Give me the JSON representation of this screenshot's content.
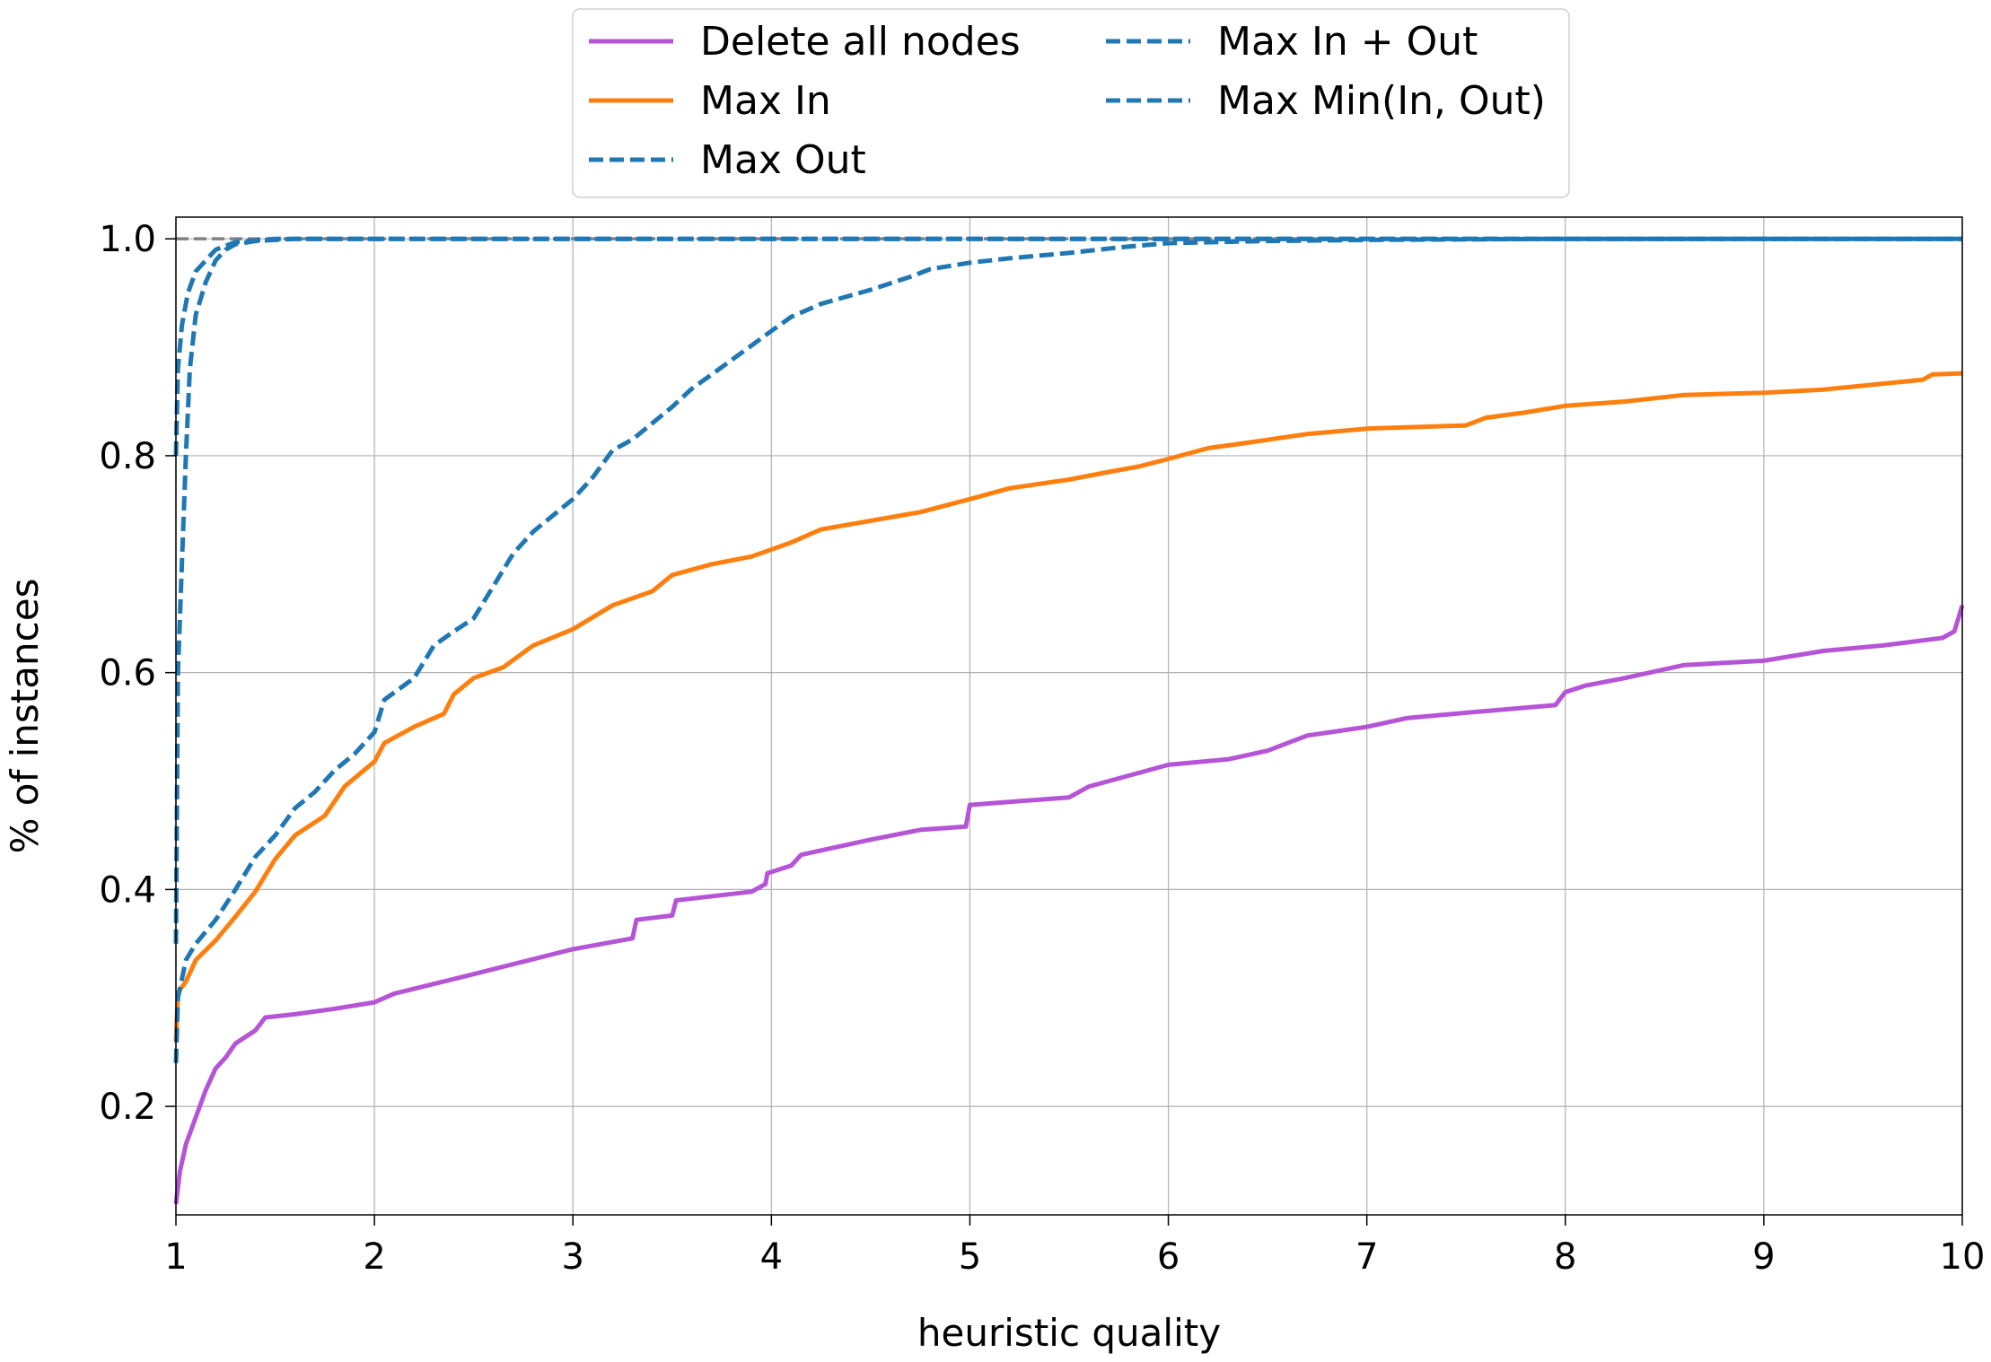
{
  "chart_data": {
    "type": "line",
    "title": "",
    "xlabel": "heuristic quality",
    "ylabel": "% of instances",
    "xlim": [
      1,
      10
    ],
    "ylim": [
      0.1,
      1.02
    ],
    "xticks": [
      1,
      2,
      3,
      4,
      5,
      6,
      7,
      8,
      9,
      10
    ],
    "yticks": [
      0.2,
      0.4,
      0.6,
      0.8,
      1.0
    ],
    "ytick_labels": [
      "0.2",
      "0.4",
      "0.6",
      "0.8",
      "1.0"
    ],
    "grid": true,
    "legend_position": "top-center",
    "reference_line": {
      "y": 1.0,
      "style": "dashed",
      "color": "#808080"
    },
    "series": [
      {
        "name": "Delete all nodes",
        "color": "#b554d6",
        "style": "solid",
        "points": [
          [
            1.0,
            0.11
          ],
          [
            1.02,
            0.14
          ],
          [
            1.05,
            0.165
          ],
          [
            1.1,
            0.19
          ],
          [
            1.15,
            0.215
          ],
          [
            1.2,
            0.235
          ],
          [
            1.25,
            0.245
          ],
          [
            1.3,
            0.258
          ],
          [
            1.4,
            0.27
          ],
          [
            1.45,
            0.282
          ],
          [
            1.6,
            0.285
          ],
          [
            1.8,
            0.29
          ],
          [
            2.0,
            0.296
          ],
          [
            2.1,
            0.304
          ],
          [
            2.5,
            0.322
          ],
          [
            3.0,
            0.345
          ],
          [
            3.3,
            0.355
          ],
          [
            3.32,
            0.372
          ],
          [
            3.5,
            0.376
          ],
          [
            3.52,
            0.39
          ],
          [
            3.9,
            0.398
          ],
          [
            3.97,
            0.405
          ],
          [
            3.98,
            0.415
          ],
          [
            4.1,
            0.422
          ],
          [
            4.15,
            0.432
          ],
          [
            4.5,
            0.446
          ],
          [
            4.75,
            0.455
          ],
          [
            4.98,
            0.458
          ],
          [
            5.0,
            0.478
          ],
          [
            5.5,
            0.485
          ],
          [
            5.6,
            0.495
          ],
          [
            5.8,
            0.505
          ],
          [
            6.0,
            0.515
          ],
          [
            6.3,
            0.52
          ],
          [
            6.5,
            0.528
          ],
          [
            6.6,
            0.535
          ],
          [
            6.7,
            0.542
          ],
          [
            7.0,
            0.55
          ],
          [
            7.2,
            0.558
          ],
          [
            7.5,
            0.563
          ],
          [
            7.95,
            0.57
          ],
          [
            8.0,
            0.582
          ],
          [
            8.1,
            0.588
          ],
          [
            8.3,
            0.595
          ],
          [
            8.6,
            0.607
          ],
          [
            9.0,
            0.611
          ],
          [
            9.3,
            0.62
          ],
          [
            9.6,
            0.625
          ],
          [
            9.9,
            0.632
          ],
          [
            9.96,
            0.638
          ],
          [
            10.0,
            0.662
          ]
        ]
      },
      {
        "name": "Max In",
        "color": "#ff7f0e",
        "style": "solid",
        "points": [
          [
            1.0,
            0.26
          ],
          [
            1.01,
            0.305
          ],
          [
            1.05,
            0.315
          ],
          [
            1.1,
            0.335
          ],
          [
            1.2,
            0.353
          ],
          [
            1.3,
            0.375
          ],
          [
            1.4,
            0.398
          ],
          [
            1.5,
            0.428
          ],
          [
            1.6,
            0.45
          ],
          [
            1.75,
            0.468
          ],
          [
            1.85,
            0.495
          ],
          [
            2.0,
            0.518
          ],
          [
            2.05,
            0.535
          ],
          [
            2.2,
            0.55
          ],
          [
            2.35,
            0.562
          ],
          [
            2.4,
            0.58
          ],
          [
            2.5,
            0.595
          ],
          [
            2.65,
            0.605
          ],
          [
            2.8,
            0.625
          ],
          [
            3.0,
            0.64
          ],
          [
            3.2,
            0.662
          ],
          [
            3.4,
            0.675
          ],
          [
            3.5,
            0.69
          ],
          [
            3.7,
            0.7
          ],
          [
            3.9,
            0.707
          ],
          [
            4.1,
            0.72
          ],
          [
            4.25,
            0.732
          ],
          [
            4.5,
            0.74
          ],
          [
            4.75,
            0.748
          ],
          [
            5.0,
            0.76
          ],
          [
            5.2,
            0.77
          ],
          [
            5.5,
            0.778
          ],
          [
            5.7,
            0.785
          ],
          [
            5.85,
            0.79
          ],
          [
            6.0,
            0.797
          ],
          [
            6.2,
            0.807
          ],
          [
            6.4,
            0.812
          ],
          [
            6.7,
            0.82
          ],
          [
            7.0,
            0.825
          ],
          [
            7.5,
            0.828
          ],
          [
            7.6,
            0.835
          ],
          [
            7.8,
            0.84
          ],
          [
            8.0,
            0.846
          ],
          [
            8.3,
            0.85
          ],
          [
            8.6,
            0.856
          ],
          [
            9.0,
            0.858
          ],
          [
            9.3,
            0.861
          ],
          [
            9.8,
            0.87
          ],
          [
            9.85,
            0.875
          ],
          [
            10.0,
            0.876
          ]
        ]
      },
      {
        "name": "Max Out",
        "color": "#1f77b4",
        "style": "dashed",
        "points": [
          [
            1.0,
            0.24
          ],
          [
            1.01,
            0.3
          ],
          [
            1.05,
            0.335
          ],
          [
            1.1,
            0.35
          ],
          [
            1.2,
            0.372
          ],
          [
            1.3,
            0.4
          ],
          [
            1.4,
            0.43
          ],
          [
            1.5,
            0.45
          ],
          [
            1.6,
            0.475
          ],
          [
            1.7,
            0.49
          ],
          [
            1.8,
            0.51
          ],
          [
            1.9,
            0.525
          ],
          [
            2.0,
            0.545
          ],
          [
            2.05,
            0.575
          ],
          [
            2.2,
            0.595
          ],
          [
            2.3,
            0.625
          ],
          [
            2.4,
            0.638
          ],
          [
            2.5,
            0.65
          ],
          [
            2.6,
            0.68
          ],
          [
            2.7,
            0.71
          ],
          [
            2.8,
            0.73
          ],
          [
            3.0,
            0.76
          ],
          [
            3.1,
            0.78
          ],
          [
            3.2,
            0.805
          ],
          [
            3.3,
            0.815
          ],
          [
            3.4,
            0.83
          ],
          [
            3.5,
            0.845
          ],
          [
            3.6,
            0.862
          ],
          [
            3.7,
            0.875
          ],
          [
            3.85,
            0.895
          ],
          [
            4.0,
            0.915
          ],
          [
            4.1,
            0.928
          ],
          [
            4.25,
            0.94
          ],
          [
            4.5,
            0.953
          ],
          [
            4.7,
            0.965
          ],
          [
            4.8,
            0.972
          ],
          [
            5.0,
            0.978
          ],
          [
            5.2,
            0.982
          ],
          [
            5.5,
            0.987
          ],
          [
            5.75,
            0.992
          ],
          [
            6.0,
            0.996
          ],
          [
            6.5,
            0.998
          ],
          [
            7.0,
            0.999
          ],
          [
            8.0,
            1.0
          ],
          [
            10.0,
            1.0
          ]
        ]
      },
      {
        "name": "Max In + Out",
        "color": "#1f77b4",
        "style": "dashed",
        "points": [
          [
            1.0,
            0.35
          ],
          [
            1.01,
            0.6
          ],
          [
            1.03,
            0.7
          ],
          [
            1.05,
            0.8
          ],
          [
            1.07,
            0.88
          ],
          [
            1.1,
            0.93
          ],
          [
            1.15,
            0.96
          ],
          [
            1.2,
            0.98
          ],
          [
            1.25,
            0.99
          ],
          [
            1.3,
            0.995
          ],
          [
            1.4,
            0.998
          ],
          [
            1.6,
            1.0
          ],
          [
            10.0,
            1.0
          ]
        ]
      },
      {
        "name": "Max Min(In, Out)",
        "color": "#1f77b4",
        "style": "dashed",
        "points": [
          [
            1.0,
            0.8
          ],
          [
            1.01,
            0.88
          ],
          [
            1.03,
            0.92
          ],
          [
            1.06,
            0.95
          ],
          [
            1.1,
            0.97
          ],
          [
            1.15,
            0.98
          ],
          [
            1.2,
            0.99
          ],
          [
            1.3,
            0.997
          ],
          [
            1.5,
            1.0
          ],
          [
            10.0,
            1.0
          ]
        ]
      }
    ]
  }
}
